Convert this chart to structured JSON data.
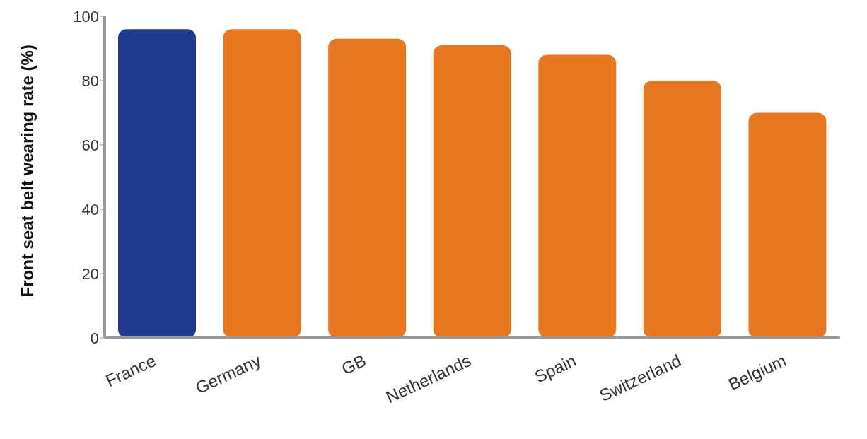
{
  "chart_data": {
    "type": "bar",
    "ylabel": "Front seat belt wearing rate (%)",
    "categories": [
      "France",
      "Germany",
      "GB",
      "Netherlands",
      "Spain",
      "Switzerland",
      "Belgium"
    ],
    "values": [
      96,
      96,
      93,
      91,
      88,
      80,
      70
    ],
    "colors": [
      "#1f3a8f",
      "#e87722",
      "#e87722",
      "#e87722",
      "#e87722",
      "#e87722",
      "#e87722"
    ],
    "ylim": [
      0,
      100
    ],
    "yticks": [
      0,
      20,
      40,
      60,
      80,
      100
    ],
    "grid": false
  }
}
